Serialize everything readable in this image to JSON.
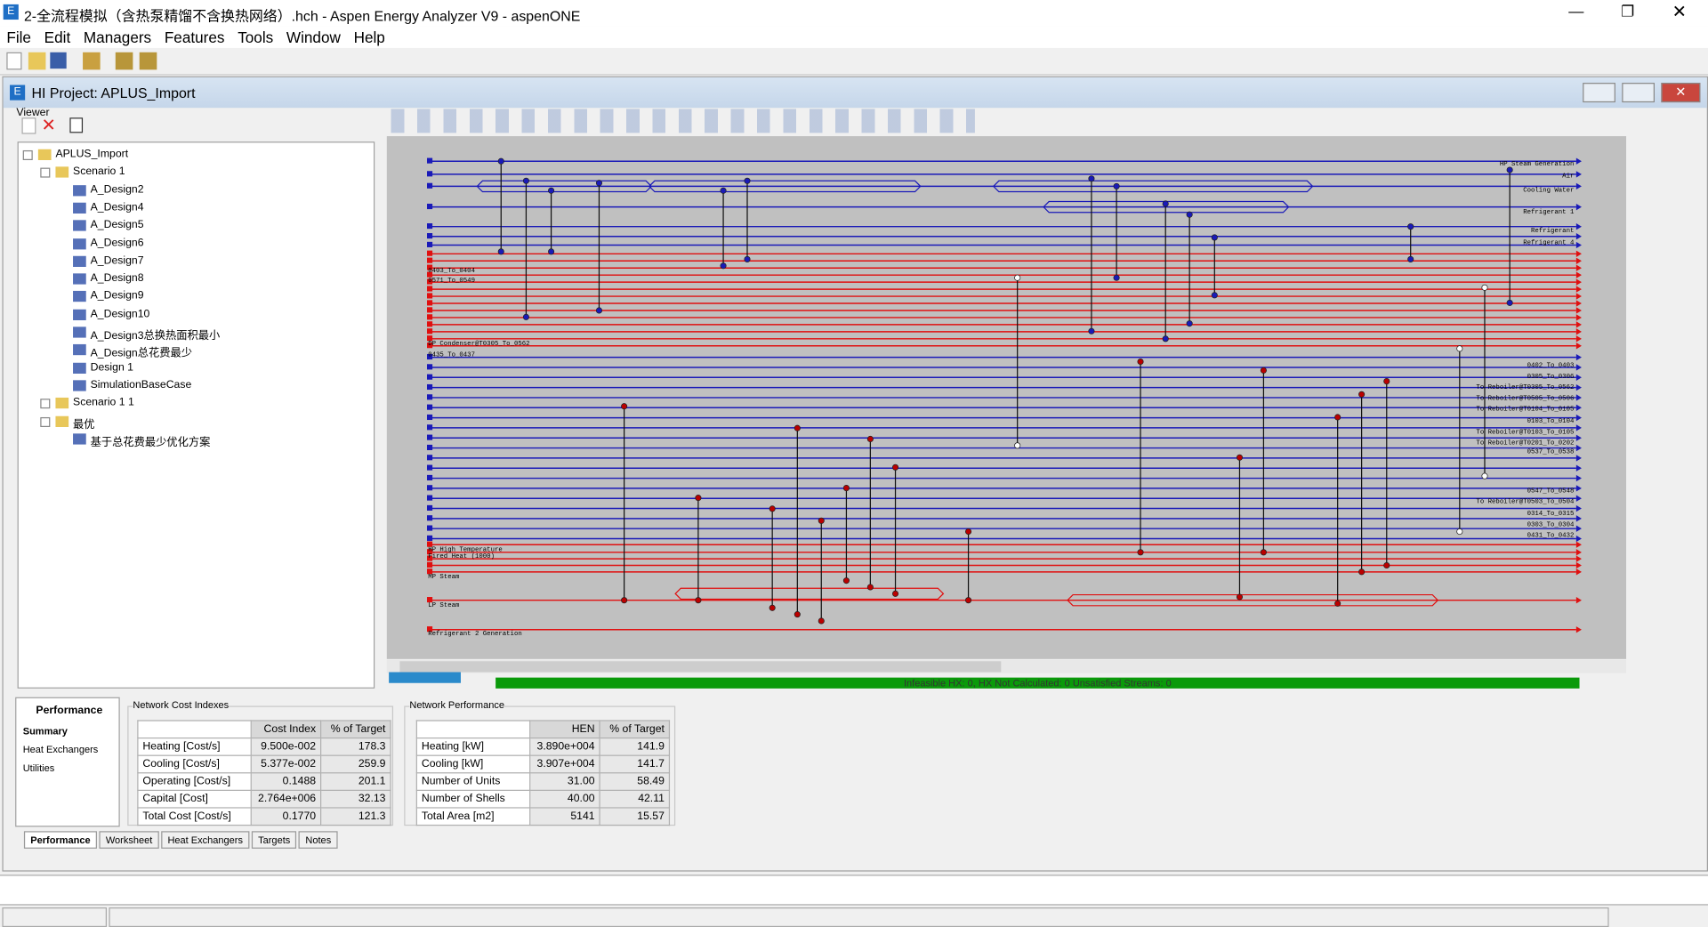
{
  "window": {
    "title": "2-全流程模拟（含热泵精馏不含换热网络）.hch - Aspen Energy Analyzer V9 - aspenONE",
    "menu": [
      "File",
      "Edit",
      "Managers",
      "Features",
      "Tools",
      "Window",
      "Help"
    ]
  },
  "project": {
    "title": "HI Project:  APLUS_Import",
    "viewer": "Viewer"
  },
  "tree": [
    {
      "label": "APLUS_Import",
      "depth": 0
    },
    {
      "label": "Scenario 1",
      "depth": 1
    },
    {
      "label": "A_Design2",
      "depth": 2
    },
    {
      "label": "A_Design4",
      "depth": 2
    },
    {
      "label": "A_Design5",
      "depth": 2
    },
    {
      "label": "A_Design6",
      "depth": 2
    },
    {
      "label": "A_Design7",
      "depth": 2
    },
    {
      "label": "A_Design8",
      "depth": 2
    },
    {
      "label": "A_Design9",
      "depth": 2
    },
    {
      "label": "A_Design10",
      "depth": 2
    },
    {
      "label": "A_Design3总换热面积最小",
      "depth": 2
    },
    {
      "label": "A_Design总花费最少",
      "depth": 2
    },
    {
      "label": "Design 1",
      "depth": 2
    },
    {
      "label": "SimulationBaseCase",
      "depth": 2
    },
    {
      "label": "Scenario 1 1",
      "depth": 1
    },
    {
      "label": "最优",
      "depth": 1
    },
    {
      "label": "基于总花费最少优化方案",
      "depth": 2
    }
  ],
  "diagram": {
    "left_labels": [
      "0403_To_0404",
      "0571_To_0549",
      "DP Condenser@T0305_To_0562",
      "0435_To_0437",
      "HP High Temperature",
      "Fired Heat (1000)",
      "MP Steam",
      "LP Steam",
      "Refrigerant 2 Generation"
    ],
    "right_labels": [
      "HP Steam Generation",
      "Air",
      "Cooling Water",
      "Refrigerant 1",
      "Refrigerant",
      "Refrigerant 4",
      "0402_To_0403",
      "0305_To_0306",
      "To Reboiler@T0305_To_0562",
      "To Reboiler@T0505_To_0506",
      "To Reboiler@T0104_To_0105",
      "0103_To_0104",
      "To Reboiler@T0103_To_0105",
      "To Reboiler@T0201_To_0202",
      "0537_To_0538",
      "0547_To_0548",
      "To Reboiler@T0503_To_0504",
      "0314_To_0315",
      "0303_To_0304",
      "0431_To_0432"
    ],
    "status": "Infeasible HX: 0, HX Not Calculated: 0     Unsatisfied Streams: 0"
  },
  "performance": {
    "title": "Performance",
    "items": [
      "Summary",
      "Heat Exchangers",
      "Utilities"
    ]
  },
  "cost": {
    "title": "Network Cost Indexes",
    "header": [
      "Cost Index",
      "% of Target"
    ],
    "rows": [
      [
        "Heating [Cost/s]",
        "9.500e-002",
        "178.3"
      ],
      [
        "Cooling [Cost/s]",
        "5.377e-002",
        "259.9"
      ],
      [
        "Operating [Cost/s]",
        "0.1488",
        "201.1"
      ],
      [
        "Capital [Cost]",
        "2.764e+006",
        "32.13"
      ],
      [
        "Total Cost [Cost/s]",
        "0.1770",
        "121.3"
      ]
    ]
  },
  "network": {
    "title": "Network Performance",
    "header": [
      "HEN",
      "% of Target"
    ],
    "rows": [
      [
        "Heating [kW]",
        "3.890e+004",
        "141.9"
      ],
      [
        "Cooling [kW]",
        "3.907e+004",
        "141.7"
      ],
      [
        "Number of Units",
        "31.00",
        "58.49"
      ],
      [
        "Number of Shells",
        "40.00",
        "42.11"
      ],
      [
        "Total Area [m2]",
        "5141",
        "15.57"
      ]
    ]
  },
  "tabs": [
    "Performance",
    "Worksheet",
    "Heat Exchangers",
    "Targets",
    "Notes"
  ]
}
